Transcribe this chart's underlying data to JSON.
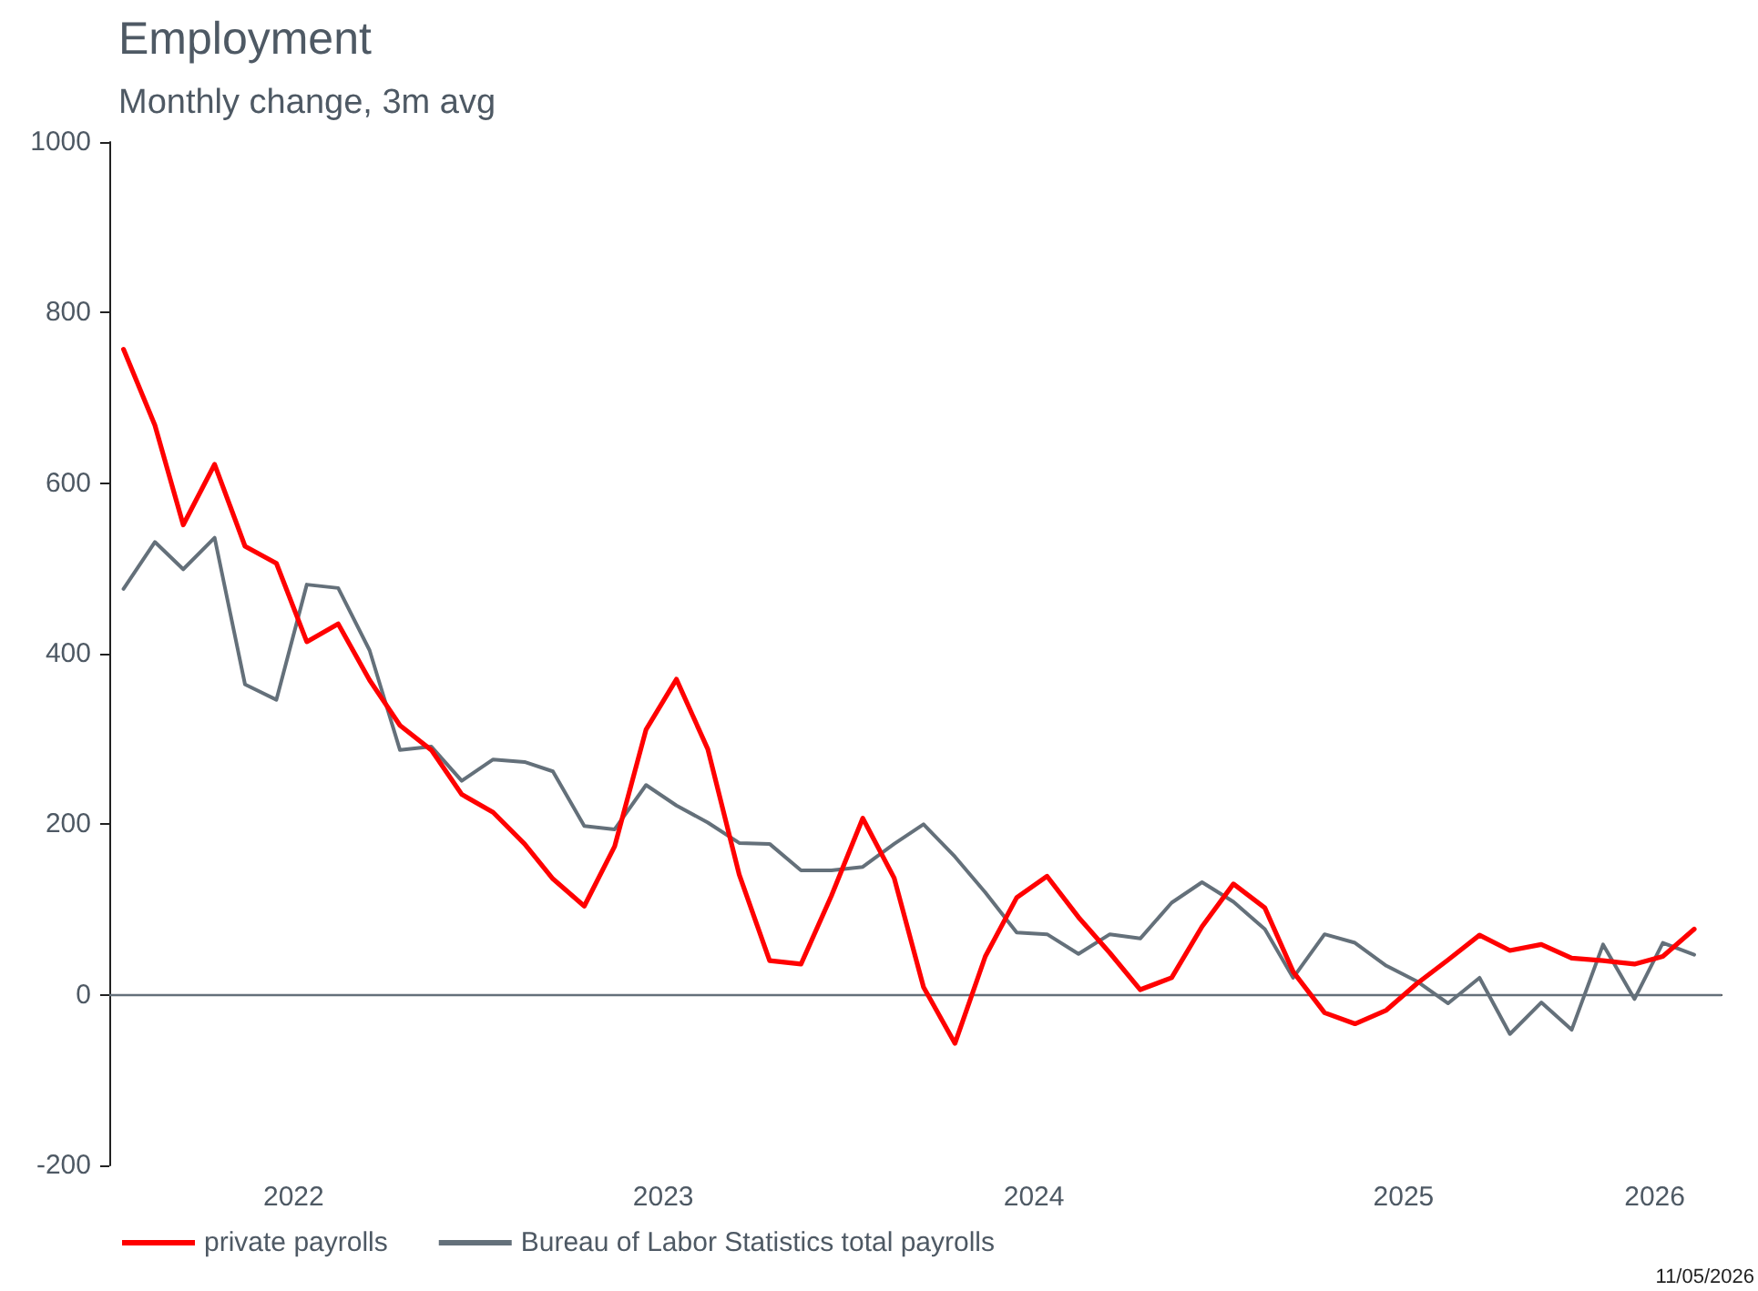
{
  "chart_data": {
    "type": "line",
    "title": "Employment",
    "subtitle": "Monthly change, 3m avg",
    "x": [
      "2022-01-15",
      "2022-02-15",
      "2022-03-15",
      "2022-04-15",
      "2022-05-15",
      "2022-06-15",
      "2022-07-15",
      "2022-08-15",
      "2022-09-15",
      "2022-10-15",
      "2022-11-15",
      "2022-12-15",
      "2023-01-15",
      "2023-02-15",
      "2023-03-15",
      "2023-04-15",
      "2023-05-15",
      "2023-06-15",
      "2023-07-15",
      "2023-08-15",
      "2023-09-15",
      "2023-10-15",
      "2023-11-15",
      "2023-12-15",
      "2024-01-15",
      "2024-02-15",
      "2024-03-15",
      "2024-04-15",
      "2024-05-15",
      "2024-06-15",
      "2024-07-15",
      "2024-08-15",
      "2024-09-15",
      "2024-10-15",
      "2024-11-15",
      "2024-12-15",
      "2025-01-15",
      "2025-02-15",
      "2025-03-15",
      "2025-04-15",
      "2025-05-15",
      "2025-06-15",
      "2025-07-15",
      "2025-08-15",
      "2025-09-15",
      "2025-10-15",
      "2025-11-15",
      "2025-12-15",
      "2026-01-15",
      "2026-02-15",
      "2026-03-15",
      "2026-04-15"
    ],
    "series": [
      {
        "name": "private payrolls",
        "color": "#ff0000",
        "values": [
          757,
          668,
          551,
          622,
          526,
          506,
          414,
          435,
          369,
          316,
          287,
          235,
          214,
          177,
          136,
          104,
          174,
          311,
          370,
          288,
          141,
          40,
          36,
          116,
          207,
          137,
          9,
          -57,
          45,
          114,
          139,
          91,
          49,
          6,
          20,
          80,
          130,
          102,
          27,
          -21,
          -34,
          -18,
          13,
          41,
          70,
          52,
          59,
          43,
          40,
          36,
          45,
          77
        ]
      },
      {
        "name": "Bureau of Labor Statistics total payrolls",
        "color": "#64707a",
        "values": [
          476,
          531,
          499,
          536,
          364,
          346,
          481,
          477,
          404,
          287,
          291,
          251,
          276,
          273,
          262,
          198,
          194,
          246,
          222,
          202,
          178,
          177,
          146,
          146,
          150,
          177,
          200,
          162,
          120,
          73,
          71,
          48,
          71,
          66,
          108,
          132,
          109,
          77,
          20,
          71,
          61,
          34,
          16,
          -10,
          20,
          -46,
          -9,
          -41,
          59,
          -5,
          61,
          47
        ]
      }
    ],
    "xlim": [
      "2022-01-01",
      "2026-05-12"
    ],
    "xticks": [
      {
        "value": "2022-07-02",
        "label": "2022"
      },
      {
        "value": "2023-07-02",
        "label": "2023"
      },
      {
        "value": "2024-07-02",
        "label": "2024"
      },
      {
        "value": "2025-07-02",
        "label": "2025"
      },
      {
        "value": "2026-03-07",
        "label": "2026"
      }
    ],
    "ylim": [
      -200,
      1000
    ],
    "yticks": [
      -200,
      0,
      200,
      400,
      600,
      800,
      1000
    ],
    "ref_lines": [
      {
        "axis": "y",
        "value": 0,
        "color": "#64707a"
      }
    ],
    "grid": false,
    "legend": "bottom left",
    "marker": "none",
    "line_style": "solid",
    "annotations": [
      "11/05/2026"
    ]
  }
}
